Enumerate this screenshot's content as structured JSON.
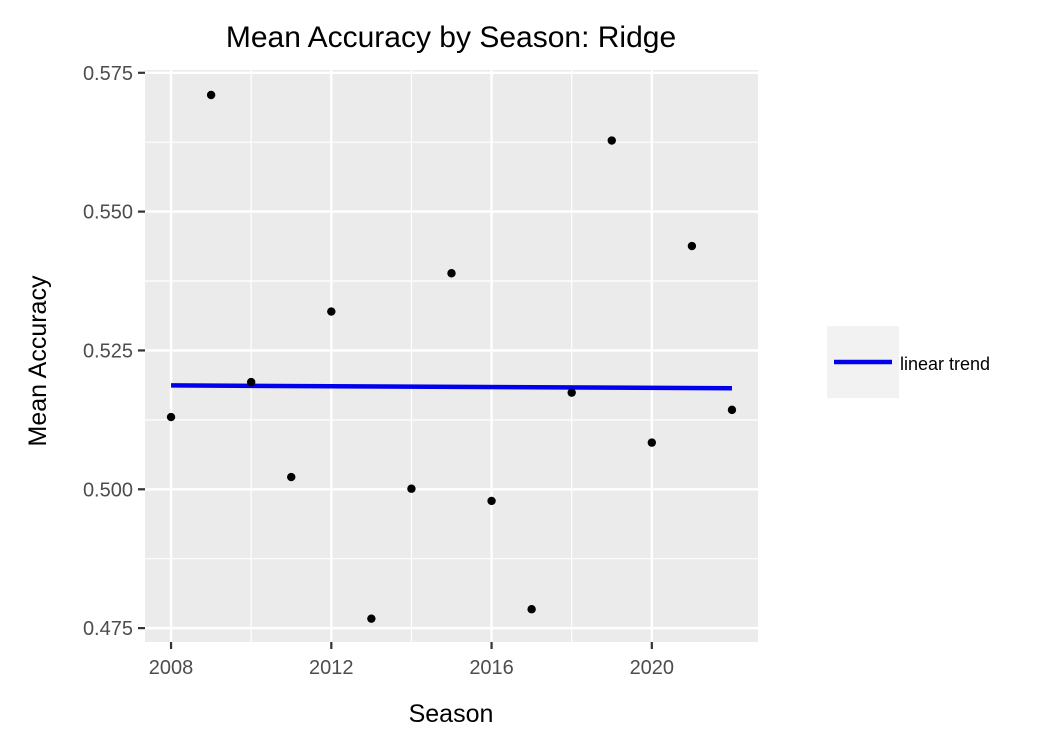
{
  "chart_data": {
    "type": "scatter",
    "title": "Mean Accuracy by Season: Ridge",
    "xlabel": "Season",
    "ylabel": "Mean Accuracy",
    "xlim": [
      2007.35,
      2022.65
    ],
    "ylim": [
      0.4725,
      0.5755
    ],
    "x_ticks": [
      2008,
      2012,
      2016,
      2020
    ],
    "x_tick_labels": [
      "2008",
      "2012",
      "2016",
      "2020"
    ],
    "y_ticks": [
      0.475,
      0.5,
      0.525,
      0.55,
      0.575
    ],
    "y_tick_labels": [
      "0.475",
      "0.500",
      "0.525",
      "0.550",
      "0.575"
    ],
    "grid": true,
    "legend_position": "right",
    "points": [
      {
        "x": 2008,
        "y": 0.513
      },
      {
        "x": 2009,
        "y": 0.571
      },
      {
        "x": 2010,
        "y": 0.5193
      },
      {
        "x": 2011,
        "y": 0.5022
      },
      {
        "x": 2012,
        "y": 0.532
      },
      {
        "x": 2013,
        "y": 0.4767
      },
      {
        "x": 2014,
        "y": 0.5001
      },
      {
        "x": 2015,
        "y": 0.5389
      },
      {
        "x": 2016,
        "y": 0.4979
      },
      {
        "x": 2017,
        "y": 0.4784
      },
      {
        "x": 2018,
        "y": 0.5174
      },
      {
        "x": 2019,
        "y": 0.5628
      },
      {
        "x": 2020,
        "y": 0.5084
      },
      {
        "x": 2021,
        "y": 0.5438
      },
      {
        "x": 2022,
        "y": 0.5143
      }
    ],
    "trend_line": {
      "name": "linear trend",
      "x": [
        2008,
        2022
      ],
      "y": [
        0.5187,
        0.5182
      ]
    },
    "colors": {
      "panel": "#ebebeb",
      "grid": "#ffffff",
      "point": "#000000",
      "trend": "#0000ee",
      "legend_key": "#f2f2f2"
    }
  }
}
